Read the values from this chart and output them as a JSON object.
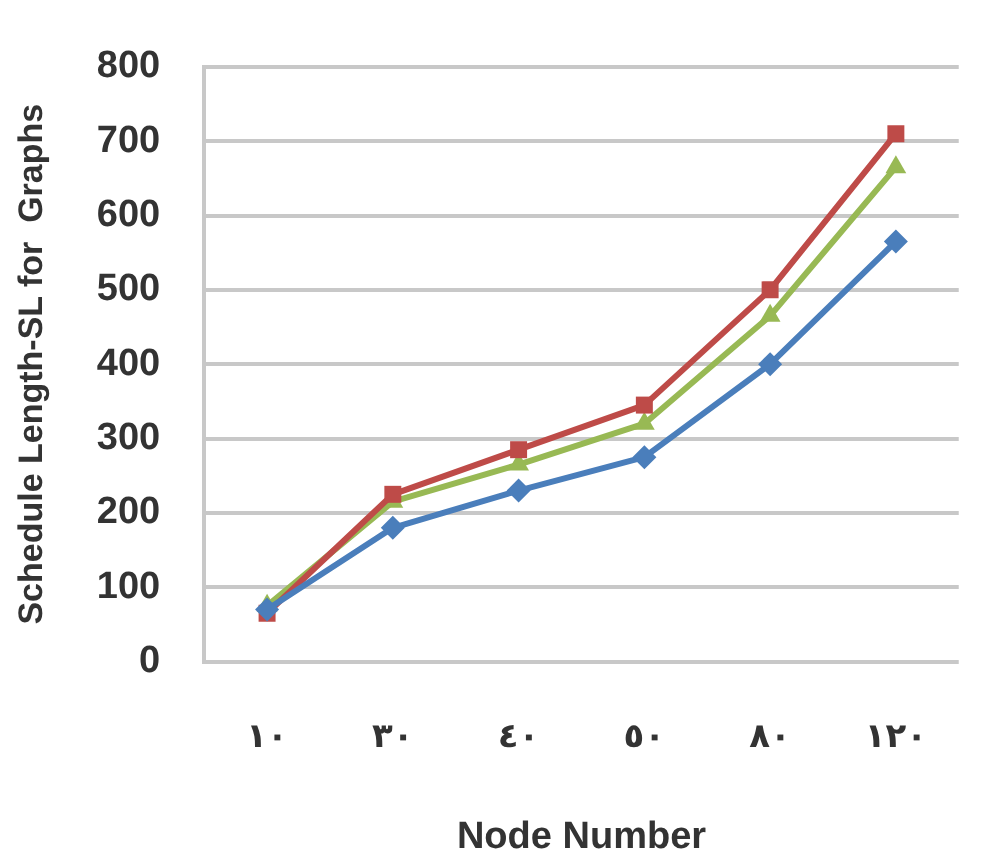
{
  "chart_data": {
    "type": "line",
    "xlabel": "Node Number",
    "ylabel": "Schedule Length-SL for  Graphs",
    "categories": [
      "١٠",
      "٣٠",
      "٤٠",
      "٥٠",
      "٨٠",
      "١٢٠"
    ],
    "series": [
      {
        "color": "#4a7ebb",
        "marker": "diamond",
        "values": [
          70,
          180,
          230,
          275,
          400,
          565
        ]
      },
      {
        "color": "#be4b48",
        "marker": "square",
        "values": [
          65,
          225,
          285,
          345,
          500,
          710
        ]
      },
      {
        "color": "#98b954",
        "marker": "triangle",
        "values": [
          75,
          215,
          265,
          320,
          465,
          665
        ]
      }
    ],
    "ylim": [
      0,
      800
    ],
    "yticks": [
      0,
      100,
      200,
      300,
      400,
      500,
      600,
      700,
      800
    ],
    "grid": "y",
    "legend": false
  }
}
